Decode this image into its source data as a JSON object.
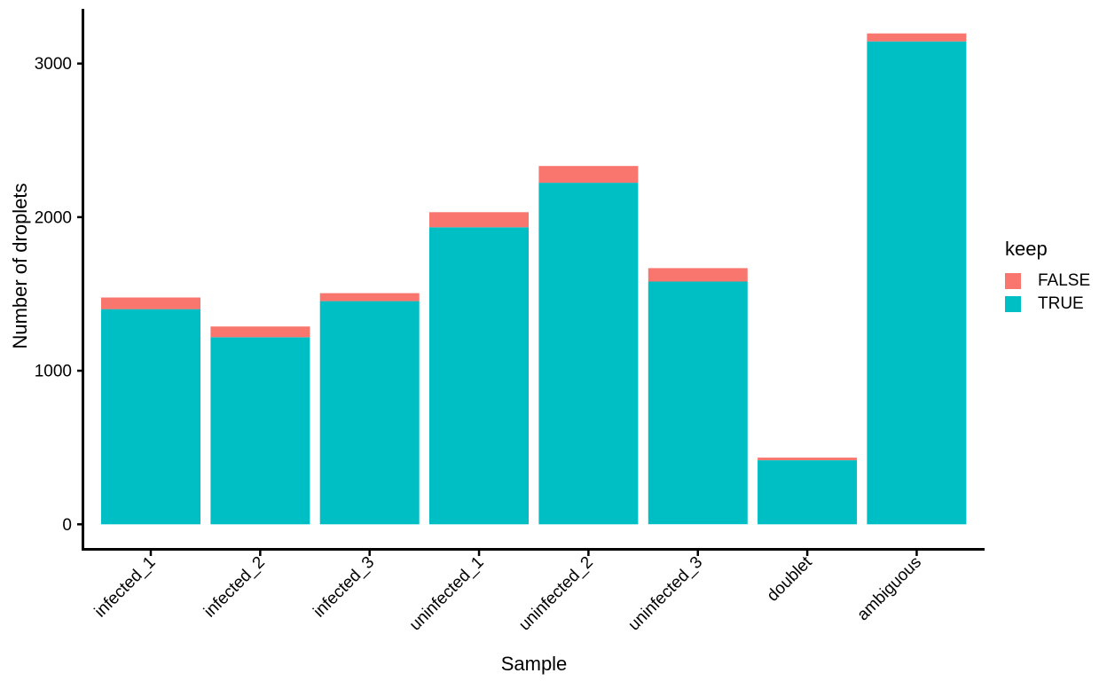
{
  "figure": {
    "y_axis_title": "Number of droplets",
    "x_axis_title": "Sample"
  },
  "legend": {
    "title": "keep",
    "items": [
      {
        "label": "FALSE",
        "color": "#F8766D"
      },
      {
        "label": "TRUE",
        "color": "#00BFC4"
      }
    ]
  },
  "colors": {
    "false_fill": "#F8766D",
    "true_fill": "#00BFC4",
    "axis": "#000000",
    "background": "#FFFFFF"
  },
  "chart_data": {
    "type": "bar",
    "stacked": true,
    "title": "",
    "xlabel": "Sample",
    "ylabel": "Number of droplets",
    "categories": [
      "infected_1",
      "infected_2",
      "infected_3",
      "uninfected_1",
      "uninfected_2",
      "uninfected_3",
      "doublet",
      "ambiguous"
    ],
    "series": [
      {
        "name": "TRUE",
        "color": "#00BFC4",
        "values": [
          1401,
          1218,
          1453,
          1934,
          2224,
          1581,
          417,
          3144
        ]
      },
      {
        "name": "FALSE",
        "color": "#F8766D",
        "values": [
          76,
          70,
          52,
          98,
          109,
          87,
          17,
          52
        ]
      }
    ],
    "totals": [
      1477,
      1288,
      1505,
      2032,
      2333,
      1668,
      434,
      3196
    ],
    "yticks": [
      0,
      1000,
      2000,
      3000
    ],
    "ylim": [
      -160,
      3356
    ],
    "grid": false,
    "legend_title": "keep",
    "legend_position": "right",
    "legend_entries": [
      "FALSE",
      "TRUE"
    ]
  }
}
